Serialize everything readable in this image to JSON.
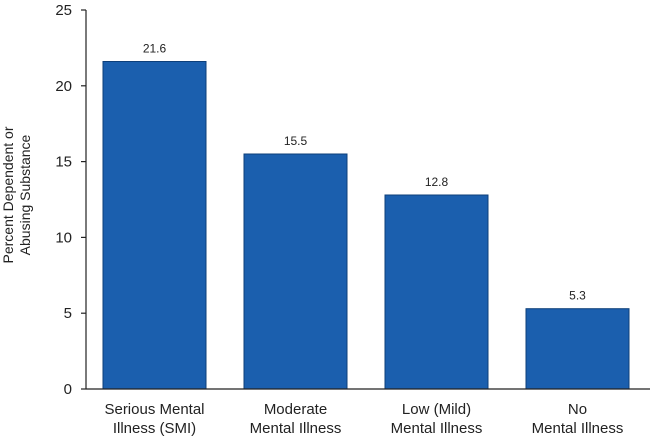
{
  "chart_data": {
    "type": "bar",
    "title": "",
    "xlabel": "",
    "ylabel_lines": [
      "Percent Dependent or",
      "Abusing Substance"
    ],
    "categories": [
      [
        "Serious Mental",
        "Illness (SMI)"
      ],
      [
        "Moderate",
        "Mental Illness"
      ],
      [
        "Low (Mild)",
        "Mental Illness"
      ],
      [
        "No",
        "Mental Illness"
      ]
    ],
    "values": [
      21.6,
      15.5,
      12.8,
      5.3
    ],
    "value_labels": [
      "21.6",
      "15.5",
      "12.8",
      "5.3"
    ],
    "ylim": [
      0,
      25
    ],
    "yticks": [
      "0",
      "5",
      "10",
      "15",
      "20",
      "25"
    ],
    "grid": false,
    "legend": "none",
    "bar_color": "#1b5fae",
    "bar_edge_color": "#0d3f7a",
    "axis_color": "#222222"
  }
}
